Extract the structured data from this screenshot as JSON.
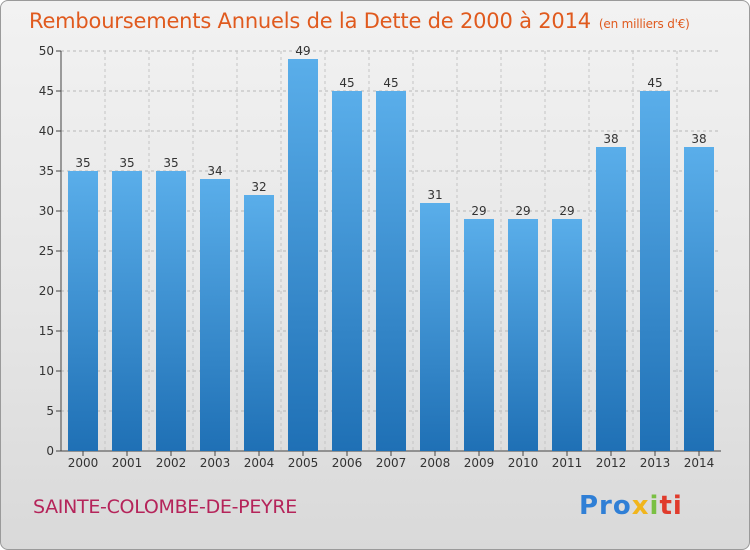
{
  "header": {
    "title": "Remboursements Annuels de la Dette de 2000 à 2014",
    "unit": "(en milliers d'€)"
  },
  "footer": {
    "commune": "SAINTE-COLOMBE-DE-PEYRE",
    "logo_text": "Proxiti"
  },
  "colors": {
    "title": "#e05a1e",
    "commune": "#b5245a",
    "bar_top": "#5aaeea",
    "bar_bottom": "#1f70b5"
  },
  "chart_data": {
    "type": "bar",
    "title": "Remboursements Annuels de la Dette de 2000 à 2014",
    "xlabel": "",
    "ylabel": "",
    "categories": [
      "2000",
      "2001",
      "2002",
      "2003",
      "2004",
      "2005",
      "2006",
      "2007",
      "2008",
      "2009",
      "2010",
      "2011",
      "2012",
      "2013",
      "2014"
    ],
    "values": [
      35,
      35,
      35,
      34,
      32,
      49,
      45,
      45,
      31,
      29,
      29,
      29,
      38,
      45,
      38
    ],
    "ylim": [
      0,
      50
    ],
    "yticks": [
      0,
      5,
      10,
      15,
      20,
      25,
      30,
      35,
      40,
      45,
      50
    ],
    "grid": true,
    "legend": "none"
  }
}
